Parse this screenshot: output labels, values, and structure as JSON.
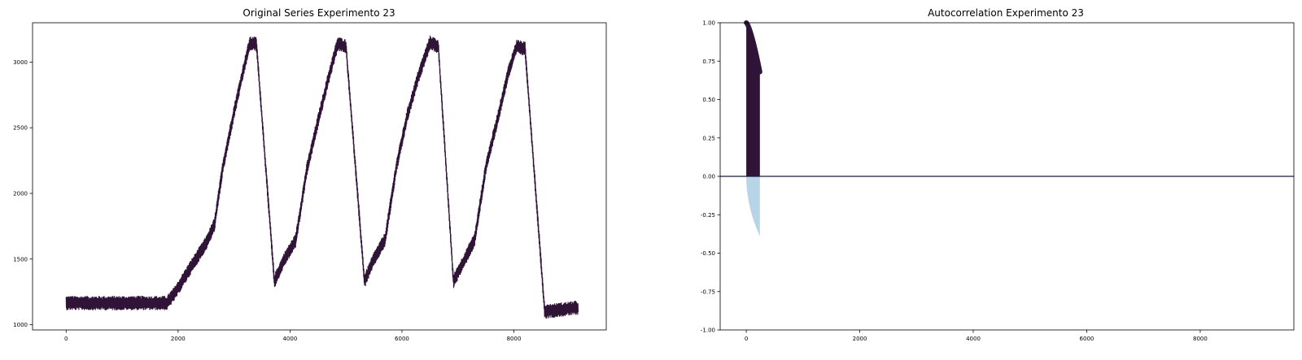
{
  "chart_data": [
    {
      "type": "line",
      "title": "Original Series Experimento 23",
      "xlabel": "",
      "ylabel": "",
      "xlim": [
        -600,
        9650
      ],
      "ylim": [
        960,
        3300
      ],
      "xticks": [
        0,
        2000,
        4000,
        6000,
        8000
      ],
      "yticks": [
        1000,
        1500,
        2000,
        2500,
        3000
      ],
      "grid": false,
      "color": "#2f1437",
      "noise_amplitude": 55,
      "series": [
        {
          "points": [
            [
              0,
              1165
            ],
            [
              1800,
              1165
            ],
            [
              1950,
              1245
            ],
            [
              2200,
              1420
            ],
            [
              2500,
              1620
            ],
            [
              2650,
              1760
            ],
            [
              2800,
              2200
            ],
            [
              3000,
              2620
            ],
            [
              3200,
              3000
            ],
            [
              3280,
              3140
            ],
            [
              3400,
              3140
            ],
            [
              3720,
              1330
            ],
            [
              3900,
              1500
            ],
            [
              4100,
              1640
            ],
            [
              4300,
              2180
            ],
            [
              4500,
              2550
            ],
            [
              4700,
              2900
            ],
            [
              4850,
              3140
            ],
            [
              5000,
              3120
            ],
            [
              5330,
              1330
            ],
            [
              5500,
              1500
            ],
            [
              5700,
              1650
            ],
            [
              5900,
              2200
            ],
            [
              6100,
              2600
            ],
            [
              6300,
              2900
            ],
            [
              6500,
              3150
            ],
            [
              6650,
              3120
            ],
            [
              6920,
              1330
            ],
            [
              7100,
              1480
            ],
            [
              7300,
              1650
            ],
            [
              7500,
              2200
            ],
            [
              7700,
              2550
            ],
            [
              7900,
              2920
            ],
            [
              8050,
              3120
            ],
            [
              8200,
              3100
            ],
            [
              8550,
              1100
            ],
            [
              9150,
              1130
            ]
          ]
        }
      ]
    },
    {
      "type": "area",
      "title": "Autocorrelation Experimento 23",
      "xlabel": "",
      "ylabel": "",
      "xlim": [
        -460,
        9650
      ],
      "ylim": [
        -1.0,
        1.0
      ],
      "xticks": [
        0,
        2000,
        4000,
        6000,
        8000
      ],
      "yticks": [
        -1.0,
        -0.75,
        -0.5,
        -0.25,
        0.0,
        0.25,
        0.5,
        0.75,
        1.0
      ],
      "grid": false,
      "max_lag": 240,
      "acf_end": 0.68,
      "confidence_end": 0.39,
      "acf_color": "#2f1437",
      "confidence_color": "#b8d5e8",
      "zero_line_color": "#1a1a3a"
    }
  ]
}
